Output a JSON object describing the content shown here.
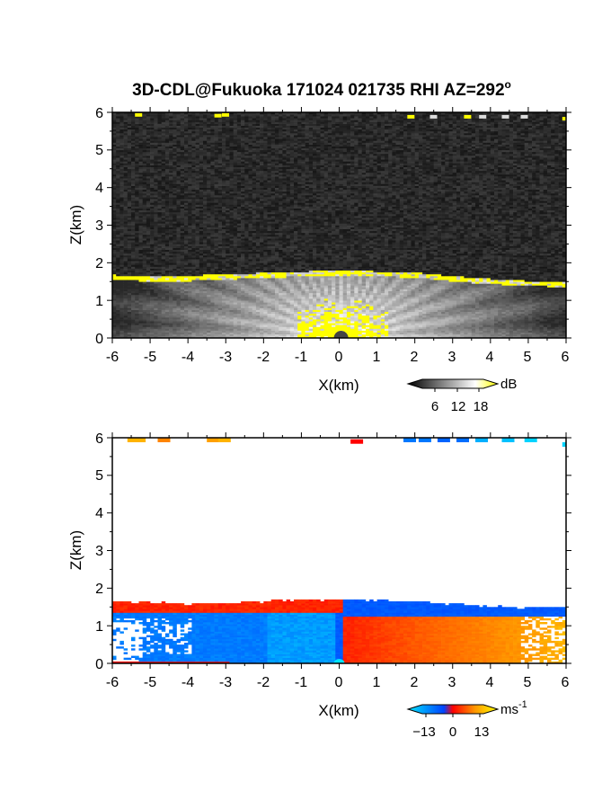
{
  "title": "3D-CDL@Fukuoka 171024 021735 RHI AZ=292",
  "title_superscript": "o",
  "chart_data": [
    {
      "type": "heatmap",
      "panel": "top",
      "title": "3D-CDL@Fukuoka 171024 021735 RHI AZ=292°",
      "xlabel": "X(km)",
      "ylabel": "Z(km)",
      "xlim": [
        -6,
        6
      ],
      "ylim": [
        0,
        6
      ],
      "x_ticks": [
        "-6",
        "-5",
        "-4",
        "-3",
        "-2",
        "-1",
        "0",
        "1",
        "2",
        "3",
        "4",
        "5",
        "6"
      ],
      "y_ticks": [
        "0",
        "1",
        "2",
        "3",
        "4",
        "5",
        "6"
      ],
      "colorbar": {
        "unit": "dB",
        "ticks": [
          "6",
          "12",
          "18"
        ],
        "tick_values": [
          6,
          12,
          18
        ],
        "range": [
          0,
          20
        ],
        "colors": [
          "#000000",
          "#ffffff",
          "#ffff00"
        ]
      },
      "features": {
        "boundary_layer_top_km": 1.65,
        "noise_floor": "dark gray",
        "high_echo_color": "#ffff00"
      }
    },
    {
      "type": "heatmap",
      "panel": "bottom",
      "xlabel": "X(km)",
      "ylabel": "Z(km)",
      "xlim": [
        -6,
        6
      ],
      "ylim": [
        0,
        6
      ],
      "x_ticks": [
        "-6",
        "-5",
        "-4",
        "-3",
        "-2",
        "-1",
        "0",
        "1",
        "2",
        "3",
        "4",
        "5",
        "6"
      ],
      "y_ticks": [
        "0",
        "1",
        "2",
        "3",
        "4",
        "5",
        "6"
      ],
      "colorbar": {
        "unit": "ms",
        "unit_exponent": "-1",
        "ticks": [
          "−13",
          "0",
          "13"
        ],
        "tick_values": [
          -13,
          0,
          13
        ],
        "range": [
          -15,
          15
        ],
        "colors": [
          "#00e5ff",
          "#0055ff",
          "#ff0000",
          "#ff9900",
          "#ffff00"
        ]
      },
      "features": {
        "boundary_layer_top_km": 1.6,
        "negative_side": "x<0 below ~1.35 km",
        "positive_side": "x>0 below ~1.25 km"
      }
    }
  ]
}
